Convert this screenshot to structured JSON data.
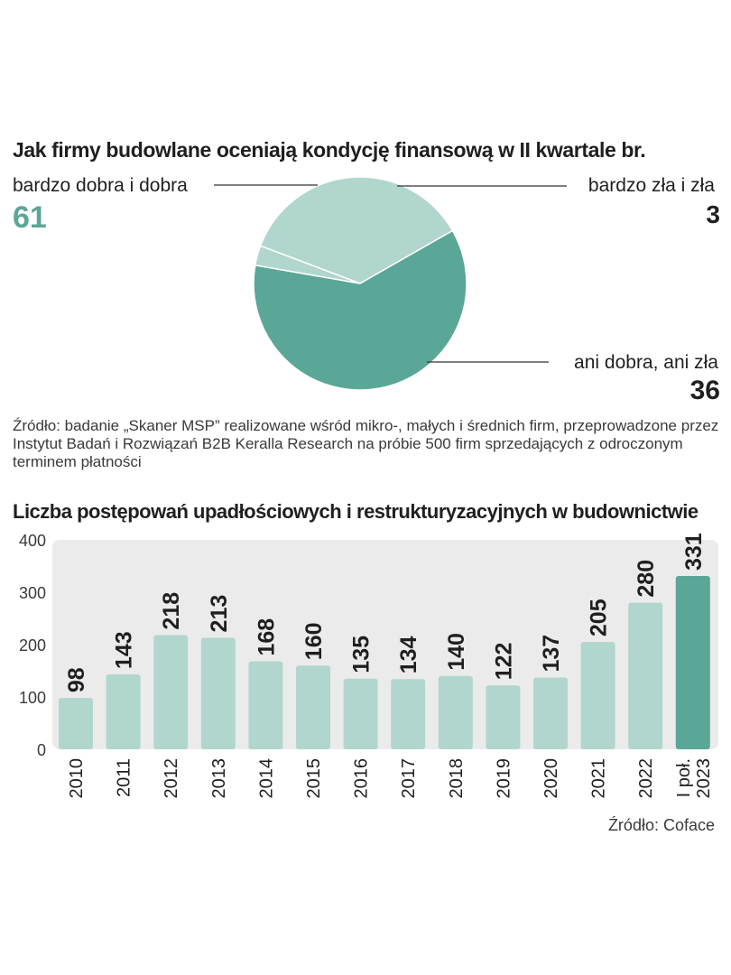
{
  "pie_chart": {
    "title": "Jak firmy budowlane oceniają kondycję finansową w II kwartale br.",
    "source": "Źródło: badanie „Skaner MSP” realizowane wśród mikro-, małych i średnich firm, przeprowadzone przez Instytut Badań i Rozwiązań B2B Keralla Research na próbie 500 firm sprzedających z odroczonym terminem płatności"
  },
  "bar_chart": {
    "title": "Liczba postępowań upadłościowych i restrukturyzacyjnych w budownictwie",
    "source": "Źródło: Coface"
  },
  "colors": {
    "dark_teal": "#5ba797",
    "light_teal": "#b1d6cd",
    "panel_bg": "#ebebeb",
    "value_green": "#5ba797"
  },
  "chart_data": [
    {
      "type": "pie",
      "title": "Jak firmy budowlane oceniają kondycję finansową w II kwartale br.",
      "slices": [
        {
          "label": "bardzo dobra i dobra",
          "value": 61,
          "value_text": "61"
        },
        {
          "label": "bardzo zła i zła",
          "value": 3,
          "value_text": "3"
        },
        {
          "label": "ani dobra, ani zła",
          "value": 36,
          "value_text": "36"
        }
      ]
    },
    {
      "type": "bar",
      "title": "Liczba postępowań upadłościowych i restrukturyzacyjnych w budownictwie",
      "categories": [
        "2010",
        "2011",
        "2012",
        "2013",
        "2014",
        "2015",
        "2016",
        "2017",
        "2018",
        "2019",
        "2020",
        "2021",
        "2022",
        "I poł. 2023"
      ],
      "values": [
        98,
        143,
        218,
        213,
        168,
        160,
        135,
        134,
        140,
        122,
        137,
        205,
        280,
        331
      ],
      "highlight_index": 13,
      "yticks": [
        "0",
        "100",
        "200",
        "300",
        "400"
      ],
      "ylim": [
        0,
        400
      ],
      "grid": false
    }
  ]
}
